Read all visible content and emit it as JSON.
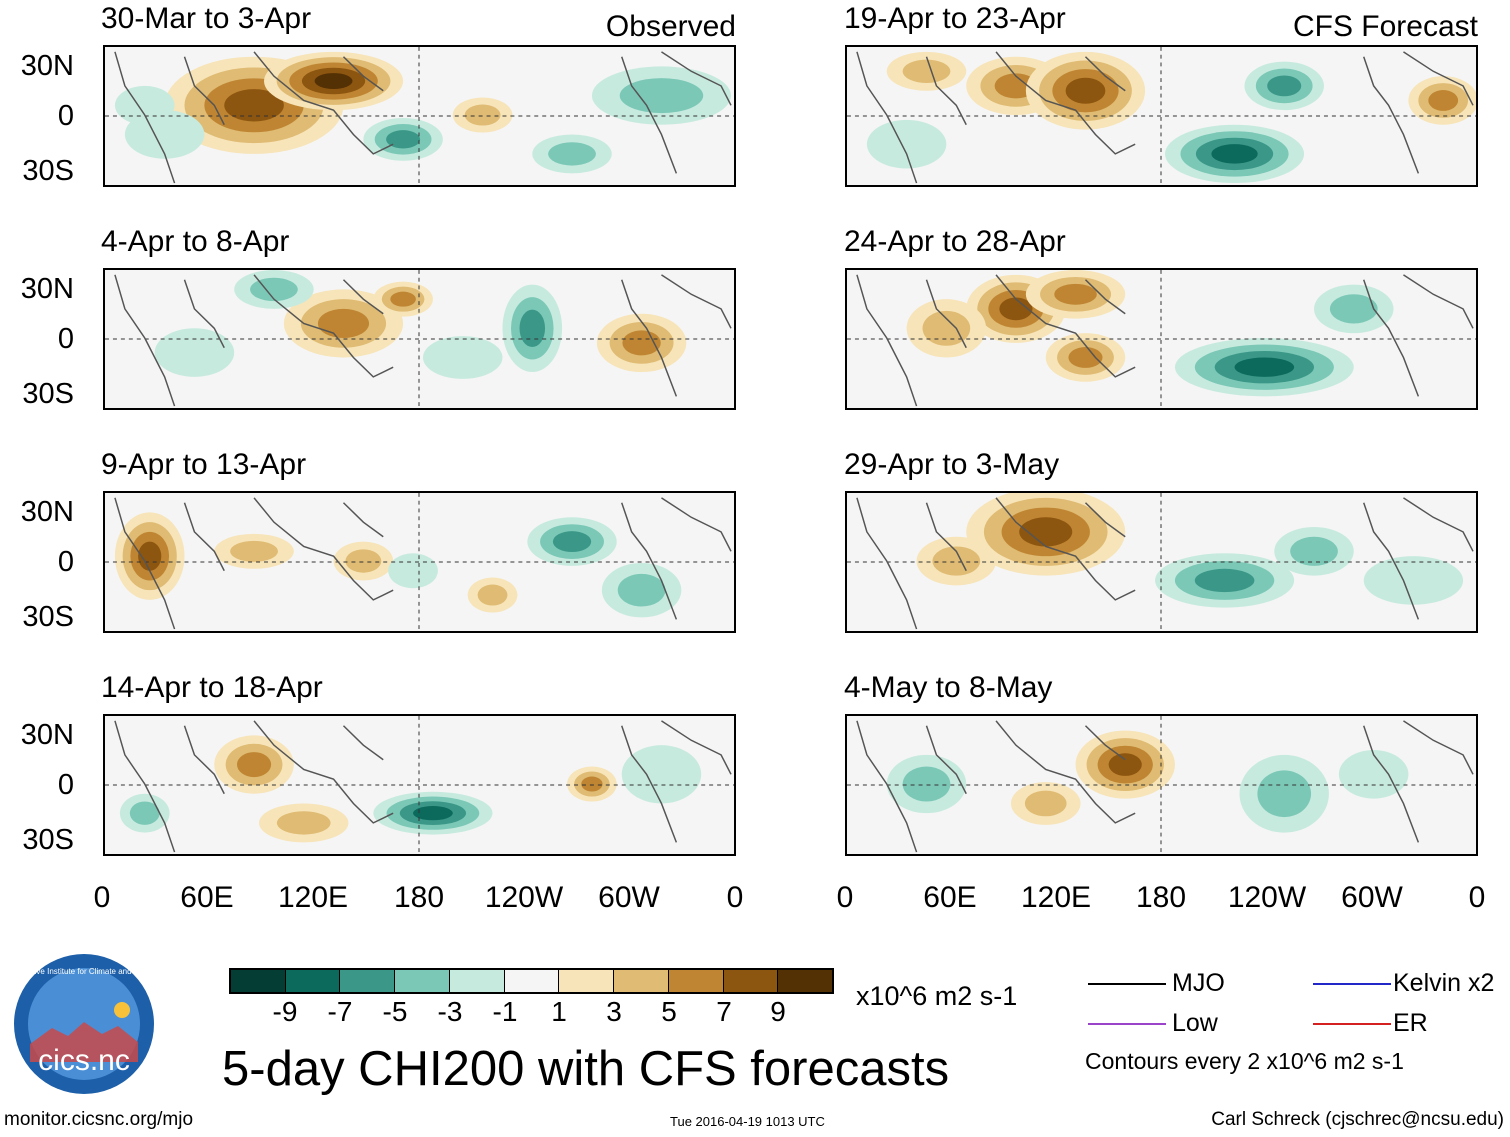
{
  "chart_data": {
    "type": "heatmap",
    "title": "5-day CHI200 with CFS forecasts",
    "variable": "CHI200",
    "units": "x10^6 m2 s-1",
    "observed_label": "Observed",
    "forecast_label": "CFS Forecast",
    "lat_ticks": [
      "30N",
      "0",
      "30S"
    ],
    "lon_ticks": [
      "0",
      "60E",
      "120E",
      "180",
      "120W",
      "60W",
      "0"
    ],
    "panels": [
      {
        "id": "p1",
        "title": "30-Mar to 3-Apr",
        "type": "observed"
      },
      {
        "id": "p2",
        "title": "4-Apr to 8-Apr",
        "type": "observed"
      },
      {
        "id": "p3",
        "title": "9-Apr to 13-Apr",
        "type": "observed"
      },
      {
        "id": "p4",
        "title": "14-Apr to 18-Apr",
        "type": "observed"
      },
      {
        "id": "p5",
        "title": "19-Apr to 23-Apr",
        "type": "forecast"
      },
      {
        "id": "p6",
        "title": "24-Apr to 28-Apr",
        "type": "forecast"
      },
      {
        "id": "p7",
        "title": "29-Apr to 3-May",
        "type": "forecast"
      },
      {
        "id": "p8",
        "title": "4-May to 8-May",
        "type": "forecast"
      }
    ],
    "colorbar": {
      "labels": [
        "-9",
        "-7",
        "-5",
        "-3",
        "-1",
        "1",
        "3",
        "5",
        "7",
        "9"
      ],
      "colors": [
        "#033d33",
        "#0c6a5d",
        "#3b9888",
        "#7cc8b7",
        "#c7eadf",
        "#f5f5f5",
        "#f7e4b8",
        "#dfbb73",
        "#bf8532",
        "#8c5510",
        "#543005"
      ]
    },
    "legend": {
      "items": [
        {
          "label": "MJO",
          "color": "#000000"
        },
        {
          "label": "Kelvin x2",
          "color": "#2228c8"
        },
        {
          "label": "Low",
          "color": "#9b44c9"
        },
        {
          "label": "ER",
          "color": "#d42020"
        }
      ],
      "contour_note": "Contours every 2 x10^6 m2 s-1"
    }
  },
  "footer": {
    "left": "monitor.cicsnc.org/mjo",
    "center": "Tue 2016-04-19 1013 UTC",
    "right": "Carl Schreck (cjschrec@ncsu.edu)"
  },
  "logo": {
    "text": "cics.nc",
    "ring_text": "Cooperative Institute for Climate and Satellites"
  }
}
